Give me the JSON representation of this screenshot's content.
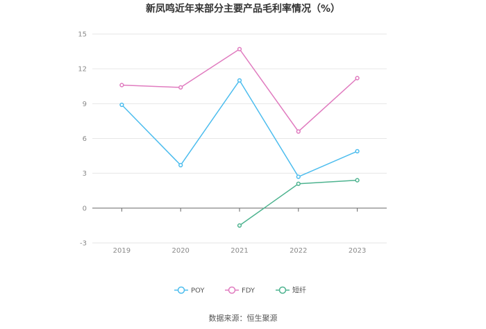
{
  "chart_data": {
    "type": "line",
    "title": "新凤鸣近年来部分主要产品毛利率情况（%）",
    "categories": [
      "2019",
      "2020",
      "2021",
      "2022",
      "2023"
    ],
    "ylim": [
      -3,
      15
    ],
    "yticks": [
      -3,
      0,
      3,
      6,
      9,
      12,
      15
    ],
    "grid": true,
    "legend_position": "bottom-center",
    "series": [
      {
        "name": "POY",
        "color": "#4dbdee",
        "values": [
          8.9,
          3.7,
          11.0,
          2.7,
          4.9
        ]
      },
      {
        "name": "FDY",
        "color": "#e07bbf",
        "values": [
          10.6,
          10.4,
          13.7,
          6.6,
          11.2
        ]
      },
      {
        "name": "短纤",
        "color": "#4db38f",
        "values": [
          null,
          null,
          -1.5,
          2.1,
          2.4
        ]
      }
    ],
    "source": "数据来源：恒生聚源"
  }
}
